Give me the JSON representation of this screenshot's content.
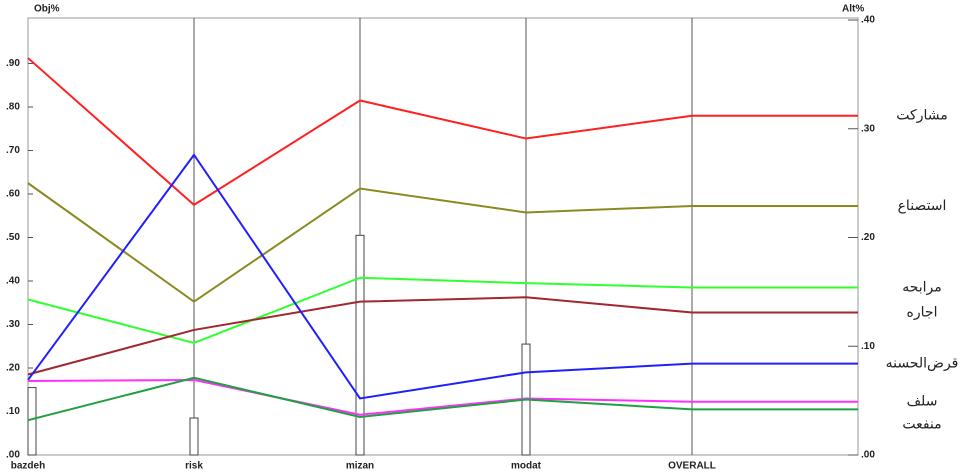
{
  "chart_data": {
    "type": "line",
    "y_label": "Obj%",
    "y2_label": "Alt%",
    "categories": [
      "bazdeh",
      "risk",
      "mizan",
      "modat",
      "OVERALL"
    ],
    "ylim": [
      0,
      1
    ],
    "yticks": [
      {
        "value": 0,
        "label": ".00"
      },
      {
        "value": 0.1,
        "label": ".10"
      },
      {
        "value": 0.2,
        "label": ".20"
      },
      {
        "value": 0.3,
        "label": ".30"
      },
      {
        "value": 0.4,
        "label": ".40"
      },
      {
        "value": 0.5,
        "label": ".50"
      },
      {
        "value": 0.6,
        "label": ".60"
      },
      {
        "value": 0.7,
        "label": ".70"
      },
      {
        "value": 0.8,
        "label": ".80"
      },
      {
        "value": 0.9,
        "label": ".90"
      }
    ],
    "y2lim": [
      0,
      0.4
    ],
    "y2ticks": [
      {
        "value": 0,
        "label": ".00"
      },
      {
        "value": 0.1,
        "label": ".10"
      },
      {
        "value": 0.2,
        "label": ".20"
      },
      {
        "value": 0.3,
        "label": ".30"
      },
      {
        "value": 0.4,
        "label": ".40"
      }
    ],
    "bars": {
      "color": "#ffffff",
      "values": [
        0.155,
        0.085,
        0.505,
        0.255,
        null
      ]
    },
    "series": [
      {
        "name": "مشارکت",
        "color": "#ff2020",
        "axis": "y2",
        "values": [
          0.365,
          0.23,
          0.326,
          0.291,
          0.312
        ]
      },
      {
        "name": "استصناع",
        "color": "#8a8a20",
        "axis": "y2",
        "values": [
          0.25,
          0.141,
          0.245,
          0.223,
          0.229
        ]
      },
      {
        "name": "مرابحه",
        "color": "#30ff30",
        "axis": "y2",
        "values": [
          0.143,
          0.103,
          0.163,
          0.158,
          0.154
        ]
      },
      {
        "name": "اجاره",
        "color": "#a02830",
        "axis": "y2",
        "values": [
          0.074,
          0.115,
          0.141,
          0.145,
          0.131
        ]
      },
      {
        "name": "قرض‌الحسنه",
        "color": "#2020ff",
        "axis": "y2",
        "values": [
          0.069,
          0.276,
          0.052,
          0.076,
          0.084
        ]
      },
      {
        "name": "سلف",
        "color": "#ff30ff",
        "axis": "y2",
        "values": [
          0.068,
          0.069,
          0.037,
          0.052,
          0.049
        ]
      },
      {
        "name": "منفعت",
        "color": "#20a040",
        "axis": "y2",
        "values": [
          0.032,
          0.071,
          0.035,
          0.051,
          0.042
        ]
      }
    ]
  }
}
